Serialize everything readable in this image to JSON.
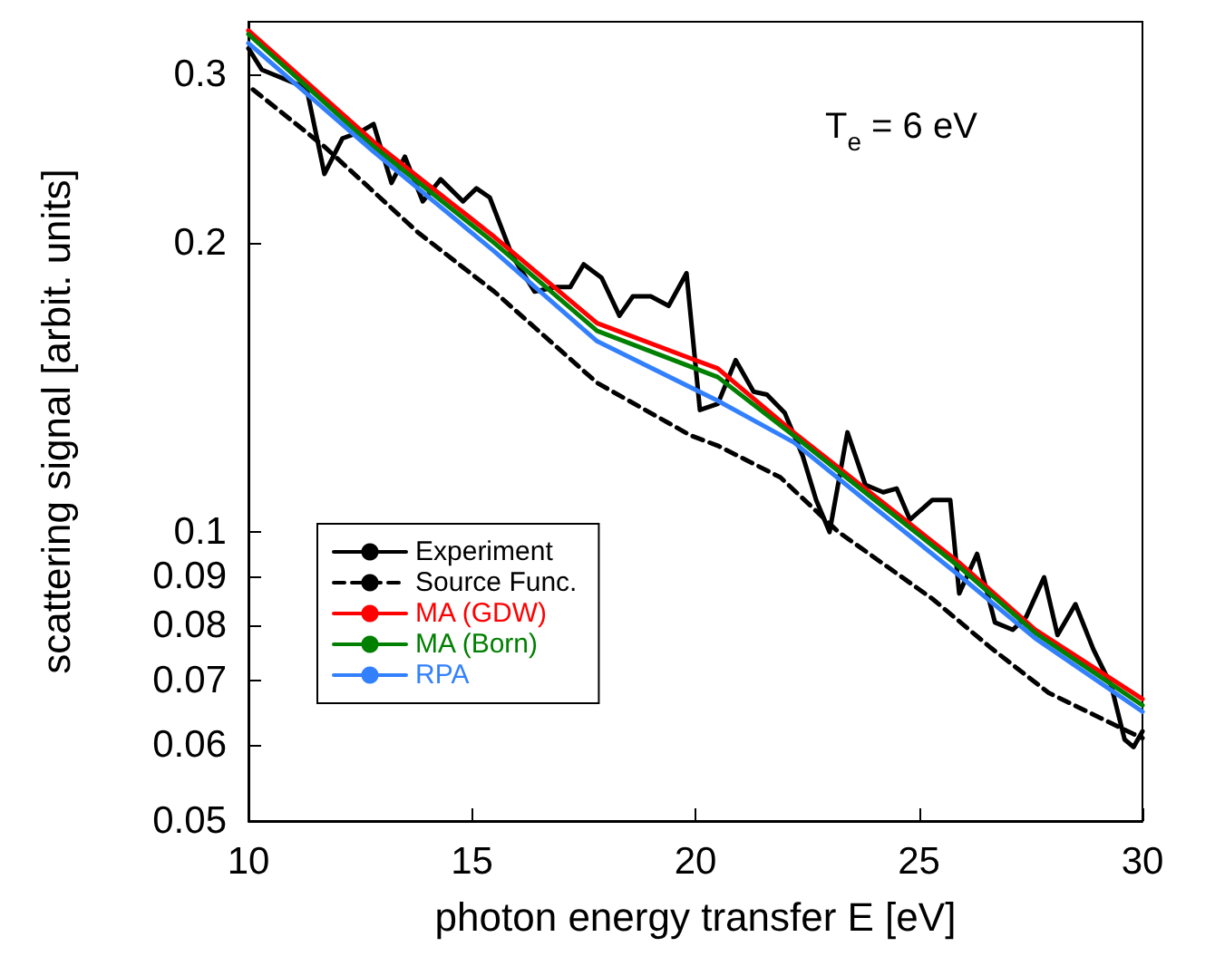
{
  "chart_data": {
    "type": "line",
    "xlabel": "photon energy transfer E [eV]",
    "ylabel": "scattering signal [arbit. units]",
    "annotations": [
      "T$_{e}$ = 6 eV"
    ],
    "xlim": [
      10,
      30
    ],
    "xticks": [
      10,
      15,
      20,
      25,
      30
    ],
    "ylim": [
      0.05,
      0.34
    ],
    "yticks": [
      0.05,
      0.06,
      0.07,
      0.08,
      0.09,
      0.1,
      0.2,
      0.3
    ],
    "log": "y",
    "grid": false,
    "legend": "bottom left",
    "marker": "none",
    "series": [
      {
        "name": "Experiment",
        "color": "#000000",
        "line_style": "solid",
        "x": [
          10.0,
          10.3,
          11.3,
          11.7,
          12.1,
          12.5,
          12.8,
          13.2,
          13.5,
          13.9,
          14.3,
          14.8,
          15.1,
          15.4,
          15.9,
          16.4,
          16.9,
          17.2,
          17.5,
          17.9,
          18.3,
          18.6,
          19.0,
          19.4,
          19.8,
          20.1,
          20.5,
          20.9,
          21.3,
          21.6,
          22.0,
          22.4,
          22.7,
          23.0,
          23.4,
          23.8,
          24.2,
          24.5,
          24.8,
          25.3,
          25.7,
          25.9,
          26.3,
          26.7,
          27.1,
          27.4,
          27.8,
          28.1,
          28.5,
          28.9,
          29.3,
          29.6,
          29.8,
          30.0
        ],
        "values": [
          0.319,
          0.303,
          0.29,
          0.236,
          0.257,
          0.261,
          0.266,
          0.231,
          0.246,
          0.221,
          0.233,
          0.221,
          0.228,
          0.223,
          0.194,
          0.178,
          0.18,
          0.18,
          0.19,
          0.184,
          0.168,
          0.176,
          0.176,
          0.172,
          0.186,
          0.134,
          0.136,
          0.151,
          0.14,
          0.139,
          0.133,
          0.12,
          0.108,
          0.1,
          0.127,
          0.112,
          0.11,
          0.111,
          0.103,
          0.108,
          0.108,
          0.0863,
          0.0949,
          0.0805,
          0.0791,
          0.0816,
          0.0897,
          0.0781,
          0.0841,
          0.0755,
          0.0692,
          0.0608,
          0.0597,
          0.062
        ]
      },
      {
        "name": "Source Func.",
        "color": "#000000",
        "line_style": "dashed",
        "x": [
          10.1,
          11.7,
          13.8,
          15.5,
          17.8,
          19.9,
          20.5,
          21.9,
          23.2,
          25.3,
          26.6,
          27.9,
          29.8,
          30.0
        ],
        "values": [
          0.289,
          0.252,
          0.205,
          0.178,
          0.143,
          0.126,
          0.123,
          0.114,
          0.1,
          0.0852,
          0.0758,
          0.068,
          0.0616,
          0.061
        ]
      },
      {
        "name": "MA (GDW)",
        "color": "#ff0000",
        "line_style": "solid",
        "x": [
          10,
          12.8,
          15.5,
          17.8,
          20.5,
          22.2,
          23.9,
          25.9,
          27.6,
          30
        ],
        "values": [
          0.333,
          0.255,
          0.203,
          0.165,
          0.148,
          0.127,
          0.11,
          0.0929,
          0.0791,
          0.067
        ]
      },
      {
        "name": "MA (Born)",
        "color": "#008000",
        "line_style": "solid",
        "x": [
          10,
          12.8,
          15.5,
          17.8,
          20.5,
          22.2,
          23.9,
          25.9,
          27.6,
          30
        ],
        "values": [
          0.33,
          0.252,
          0.2,
          0.162,
          0.145,
          0.126,
          0.109,
          0.092,
          0.0785,
          0.066
        ]
      },
      {
        "name": "RPA",
        "color": "#3380ff",
        "line_style": "solid",
        "x": [
          10,
          12.8,
          15.5,
          17.8,
          20.5,
          22.2,
          23.9,
          25.9,
          27.6,
          30
        ],
        "values": [
          0.323,
          0.249,
          0.196,
          0.158,
          0.137,
          0.124,
          0.107,
          0.0901,
          0.0775,
          0.065
        ]
      }
    ]
  }
}
